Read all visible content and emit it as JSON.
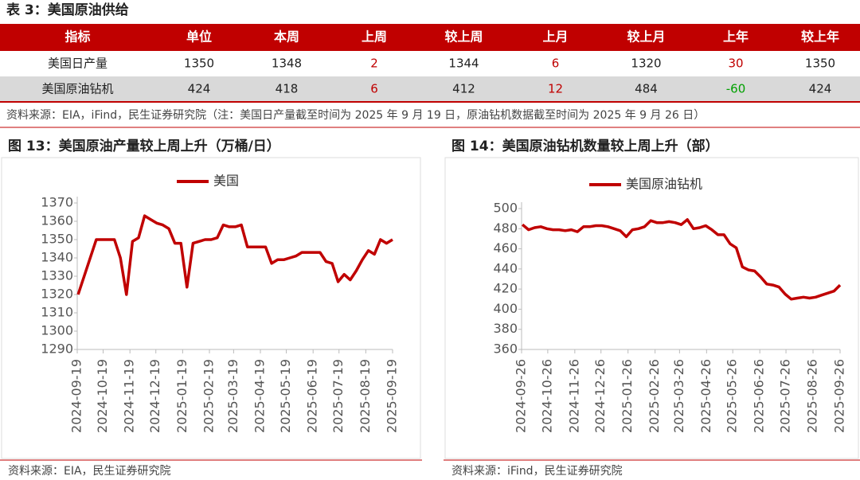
{
  "table": {
    "title": "表 3：美国原油供给",
    "header": [
      "指标",
      "单位",
      "本周",
      "上周",
      "较上周",
      "上月",
      "较上月",
      "上年",
      "较上年"
    ],
    "rows": [
      [
        "美国日产量",
        1350,
        1348,
        2,
        1344,
        6,
        1320,
        30,
        1350
      ],
      [
        "美国原油钻机",
        424,
        418,
        6,
        412,
        12,
        484,
        -60,
        424
      ]
    ],
    "source": "资料来源：EIA，iFind，民生证券研究院（注：美国日产量截至时间为 2025 年 9 月 19 日，原油钻机数据截至时间为 2025 年 9 月 26 日）"
  },
  "chart_data": [
    {
      "type": "line",
      "title": "图 13：美国原油产量较上周上升（万桶/日）",
      "source": "资料来源：EIA，民生证券研究院",
      "x": [
        "2024-09-20",
        "2024-09-27",
        "2024-10-04",
        "2024-10-11",
        "2024-10-18",
        "2024-10-25",
        "2024-11-01",
        "2024-11-08",
        "2024-11-15",
        "2024-11-22",
        "2024-11-29",
        "2024-12-06",
        "2024-12-13",
        "2024-12-20",
        "2024-12-27",
        "2025-01-03",
        "2025-01-10",
        "2025-01-17",
        "2025-01-24",
        "2025-01-31",
        "2025-02-07",
        "2025-02-14",
        "2025-02-21",
        "2025-02-28",
        "2025-03-07",
        "2025-03-14",
        "2025-03-21",
        "2025-03-28",
        "2025-04-04",
        "2025-04-11",
        "2025-04-18",
        "2025-04-25",
        "2025-05-02",
        "2025-05-09",
        "2025-05-16",
        "2025-05-23",
        "2025-05-30",
        "2025-06-06",
        "2025-06-13",
        "2025-06-20",
        "2025-06-27",
        "2025-07-04",
        "2025-07-11",
        "2025-07-18",
        "2025-07-25",
        "2025-08-01",
        "2025-08-08",
        "2025-08-15",
        "2025-08-22",
        "2025-08-29",
        "2025-09-05",
        "2025-09-12",
        "2025-09-19"
      ],
      "series": [
        {
          "name": "美国",
          "color": "#c00000",
          "values": [
            1320,
            1330,
            1340,
            1350,
            1350,
            1350,
            1350,
            1340,
            1320,
            1349,
            1351,
            1363,
            1361,
            1359,
            1358,
            1356,
            1348,
            1348,
            1324,
            1348,
            1349,
            1350,
            1350,
            1351,
            1358,
            1357,
            1357,
            1358,
            1346,
            1346,
            1346,
            1346,
            1337,
            1339,
            1339,
            1340,
            1341,
            1343,
            1343,
            1343,
            1343,
            1338,
            1337,
            1327,
            1331,
            1328,
            1333,
            1339,
            1344,
            1342,
            1350,
            1348,
            1350
          ]
        }
      ],
      "xlim": [
        "2024-09-19",
        "2025-09-19"
      ],
      "xticks": [
        "2024-09-19",
        "2024-10-19",
        "2024-11-19",
        "2024-12-19",
        "2025-01-19",
        "2025-02-19",
        "2025-03-19",
        "2025-04-19",
        "2025-05-19",
        "2025-06-19",
        "2025-07-19",
        "2025-08-19",
        "2025-09-19"
      ],
      "ylim": [
        1290,
        1370
      ],
      "yticks": [
        1290,
        1300,
        1310,
        1320,
        1330,
        1340,
        1350,
        1360,
        1370
      ]
    },
    {
      "type": "line",
      "title": "图 14：美国原油钻机数量较上周上升（部）",
      "source": "资料来源：iFind，民生证券研究院",
      "x": [
        "2024-09-27",
        "2024-10-04",
        "2024-10-11",
        "2024-10-18",
        "2024-10-25",
        "2024-11-01",
        "2024-11-08",
        "2024-11-15",
        "2024-11-22",
        "2024-11-29",
        "2024-12-06",
        "2024-12-13",
        "2024-12-20",
        "2024-12-27",
        "2025-01-03",
        "2025-01-10",
        "2025-01-17",
        "2025-01-24",
        "2025-01-31",
        "2025-02-07",
        "2025-02-14",
        "2025-02-21",
        "2025-02-28",
        "2025-03-07",
        "2025-03-14",
        "2025-03-21",
        "2025-03-28",
        "2025-04-04",
        "2025-04-11",
        "2025-04-18",
        "2025-04-25",
        "2025-05-02",
        "2025-05-09",
        "2025-05-16",
        "2025-05-23",
        "2025-05-30",
        "2025-06-06",
        "2025-06-13",
        "2025-06-20",
        "2025-06-27",
        "2025-07-04",
        "2025-07-11",
        "2025-07-18",
        "2025-07-25",
        "2025-08-01",
        "2025-08-08",
        "2025-08-15",
        "2025-08-22",
        "2025-08-29",
        "2025-09-05",
        "2025-09-12",
        "2025-09-19",
        "2025-09-26"
      ],
      "series": [
        {
          "name": "美国原油钻机",
          "color": "#c00000",
          "values": [
            484,
            479,
            481,
            482,
            480,
            479,
            479,
            478,
            479,
            477,
            482,
            482,
            483,
            483,
            482,
            480,
            478,
            472,
            479,
            480,
            482,
            488,
            486,
            486,
            487,
            486,
            484,
            489,
            480,
            481,
            483,
            479,
            474,
            474,
            465,
            461,
            442,
            439,
            438,
            432,
            425,
            424,
            422,
            415,
            410,
            411,
            412,
            411,
            412,
            414,
            416,
            418,
            424
          ]
        }
      ],
      "xlim": [
        "2024-09-26",
        "2025-09-26"
      ],
      "xticks": [
        "2024-09-26",
        "2024-10-26",
        "2024-11-26",
        "2024-12-26",
        "2025-01-26",
        "2025-02-26",
        "2025-03-26",
        "2025-04-26",
        "2025-05-26",
        "2025-06-26",
        "2025-07-26",
        "2025-08-26",
        "2025-09-26"
      ],
      "ylim": [
        360,
        500
      ],
      "yticks": [
        360,
        380,
        400,
        420,
        440,
        460,
        480,
        500
      ]
    }
  ]
}
